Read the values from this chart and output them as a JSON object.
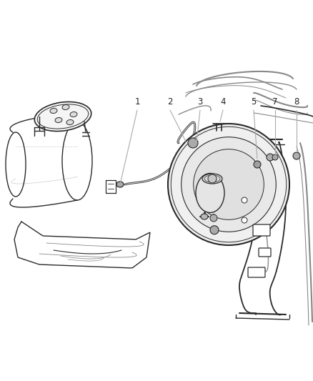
{
  "background_color": "#ffffff",
  "fig_width": 4.39,
  "fig_height": 5.33,
  "dpi": 100,
  "line_color": "#2a2a2a",
  "gray_color": "#888888",
  "light_gray": "#cccccc",
  "callout_line_color": "#aaaaaa"
}
